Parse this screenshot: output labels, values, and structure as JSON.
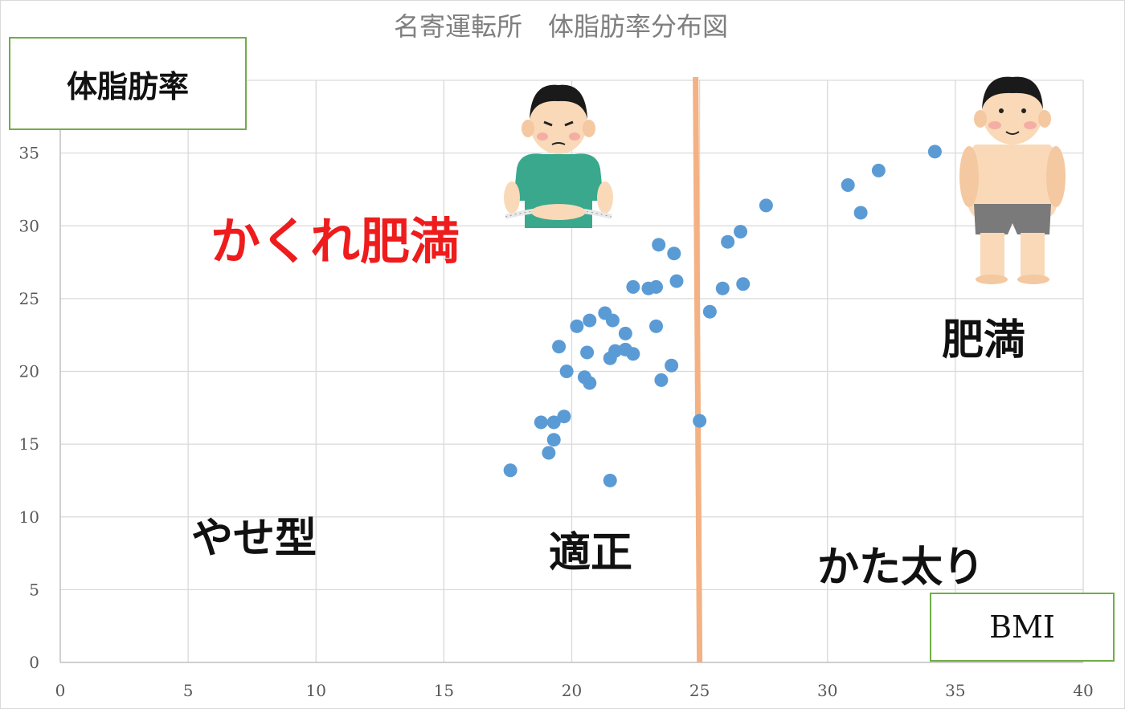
{
  "chart_data": {
    "type": "scatter",
    "title": "名寄運転所　体脂肪率分布図",
    "xlabel": "BMI",
    "ylabel": "体脂肪率",
    "xlim": [
      0,
      40
    ],
    "ylim": [
      0,
      40
    ],
    "xticks": [
      0,
      5,
      10,
      15,
      20,
      25,
      30,
      35,
      40
    ],
    "yticks": [
      0,
      5,
      10,
      15,
      20,
      25,
      30,
      35
    ],
    "grid": true,
    "reference_line": {
      "x": 25,
      "color": "#f4b183"
    },
    "series": [
      {
        "color": "#5b9bd5",
        "points": [
          [
            17.6,
            13.2
          ],
          [
            18.8,
            16.5
          ],
          [
            19.1,
            14.4
          ],
          [
            19.3,
            15.3
          ],
          [
            19.3,
            16.5
          ],
          [
            19.5,
            21.7
          ],
          [
            19.7,
            16.9
          ],
          [
            19.8,
            20.0
          ],
          [
            20.2,
            23.1
          ],
          [
            20.5,
            19.6
          ],
          [
            20.6,
            21.3
          ],
          [
            20.7,
            23.5
          ],
          [
            20.7,
            19.2
          ],
          [
            21.3,
            24.0
          ],
          [
            21.5,
            20.9
          ],
          [
            21.5,
            12.5
          ],
          [
            21.6,
            23.5
          ],
          [
            21.7,
            21.4
          ],
          [
            22.1,
            22.6
          ],
          [
            22.1,
            21.5
          ],
          [
            22.4,
            21.2
          ],
          [
            22.4,
            25.8
          ],
          [
            23.0,
            25.7
          ],
          [
            23.3,
            25.8
          ],
          [
            23.3,
            23.1
          ],
          [
            23.4,
            28.7
          ],
          [
            23.5,
            19.4
          ],
          [
            23.9,
            20.4
          ],
          [
            24.0,
            28.1
          ],
          [
            24.1,
            26.2
          ],
          [
            25.0,
            16.6
          ],
          [
            25.4,
            24.1
          ],
          [
            25.9,
            25.7
          ],
          [
            26.1,
            28.9
          ],
          [
            26.6,
            29.6
          ],
          [
            26.7,
            26.0
          ],
          [
            27.6,
            31.4
          ],
          [
            30.8,
            32.8
          ],
          [
            31.3,
            30.9
          ],
          [
            32.0,
            33.8
          ],
          [
            34.2,
            35.1
          ]
        ]
      }
    ]
  },
  "regions": {
    "hidden_obesity": "かくれ肥満",
    "thin": "やせ型",
    "normal": "適正",
    "overweight": "かた太り",
    "obese": "肥満"
  },
  "icons": {
    "measuring_person": "person-measuring-waist-icon",
    "obese_person": "obese-person-icon"
  },
  "colors": {
    "dots": "#5b9bd5",
    "divider": "#f4b183",
    "label_border": "#70ad47",
    "hidden_obesity_text": "#ee1c1c"
  }
}
